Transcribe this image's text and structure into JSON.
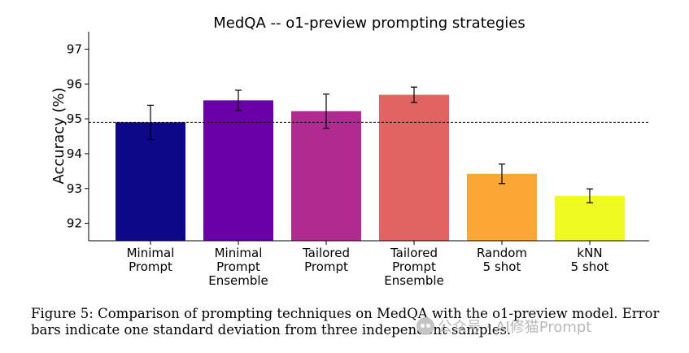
{
  "chart_data": {
    "type": "bar",
    "title": "MedQA -- o1-preview prompting strategies",
    "xlabel": "",
    "ylabel": "Accuracy (%)",
    "ylim": [
      91.5,
      97.5
    ],
    "yticks": [
      92,
      93,
      94,
      95,
      96,
      97
    ],
    "categories": [
      "Minimal\nPrompt",
      "Minimal\nPrompt\nEnsemble",
      "Tailored\nPrompt",
      "Tailored\nPrompt\nEnsemble",
      "Random\n5 shot",
      "kNN\n5 shot"
    ],
    "values": [
      94.9,
      95.53,
      95.22,
      95.69,
      93.42,
      92.79
    ],
    "errors": [
      0.49,
      0.29,
      0.49,
      0.22,
      0.28,
      0.2
    ],
    "colors": [
      "#0d0887",
      "#6a00a8",
      "#b12a90",
      "#e16462",
      "#fca636",
      "#f0f921"
    ],
    "reference_line": 94.9
  },
  "caption": "Figure 5: Comparison of prompting techniques on MedQA with the o1-preview model. Error bars indicate one standard deviation from three independent samples.",
  "watermark": "公众号 · AI修猫Prompt"
}
